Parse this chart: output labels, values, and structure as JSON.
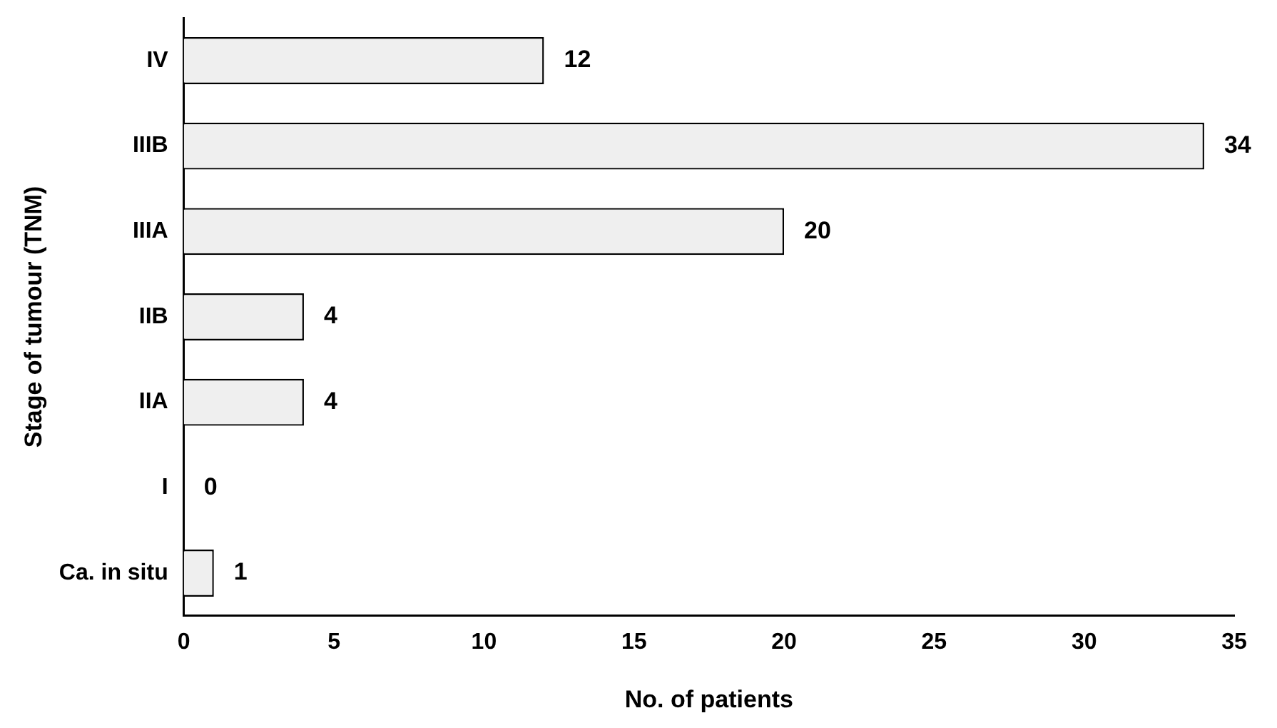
{
  "chart_data": {
    "type": "bar",
    "orientation": "horizontal",
    "xlabel": "No. of patients",
    "ylabel": "Stage of tumour (TNM)",
    "categories": [
      "IV",
      "IIIB",
      "IIIA",
      "IIB",
      "IIA",
      "I",
      "Ca. in situ"
    ],
    "values": [
      12,
      34,
      20,
      4,
      4,
      0,
      1
    ],
    "color": "#efefef",
    "xlim": [
      0,
      35
    ],
    "xticks": [
      0,
      5,
      10,
      15,
      20,
      25,
      30,
      35
    ],
    "grid": false,
    "legend": false,
    "data_labels": true
  }
}
